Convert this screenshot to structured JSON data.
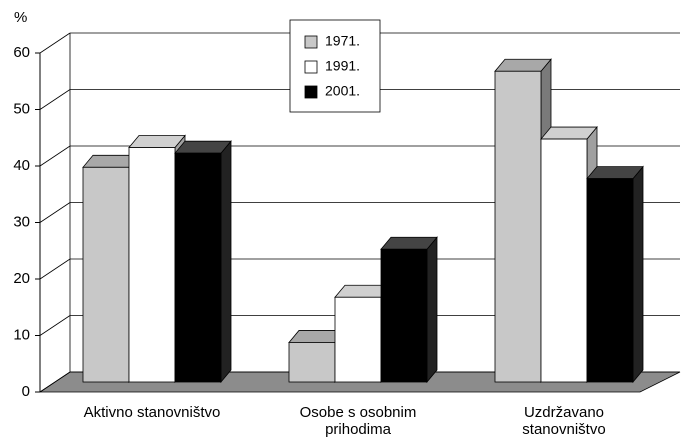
{
  "chart_data": {
    "type": "bar3d",
    "y_label": "%",
    "categories": [
      "Aktivno stanovništvo",
      "Osobe s osobnim prihodima",
      "Uzdržavano stanovništvo"
    ],
    "series": [
      {
        "name": "1971.",
        "color": "#c8c8c8",
        "values": [
          38,
          7,
          55
        ]
      },
      {
        "name": "1991.",
        "color": "#ffffff",
        "values": [
          41.5,
          15,
          43
        ]
      },
      {
        "name": "2001.",
        "color": "#000000",
        "values": [
          40.5,
          23.5,
          36
        ]
      }
    ],
    "ylim": [
      0,
      60
    ],
    "yticks": [
      0,
      10,
      20,
      30,
      40,
      50,
      60
    ],
    "grid": true
  }
}
